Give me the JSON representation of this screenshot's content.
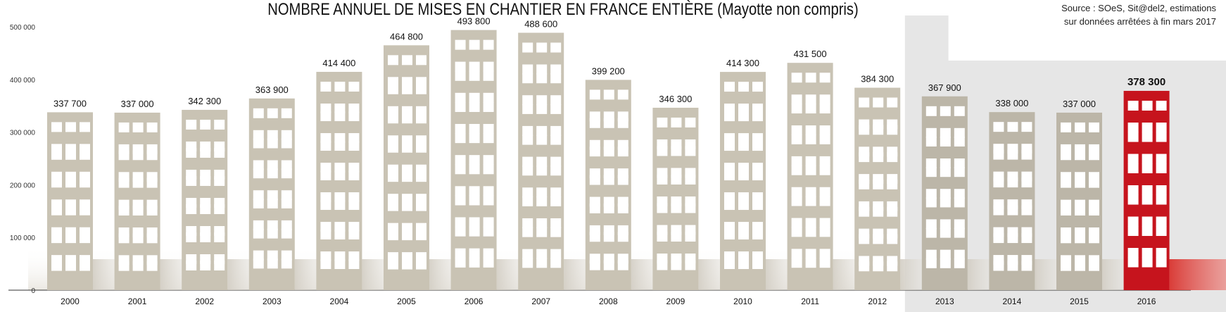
{
  "title": "NOMBRE ANNUEL DE MISES EN CHANTIER EN FRANCE ENTIÈRE (Mayotte non compris)",
  "source": [
    "Source : SOeS, Sit@del2, estimations",
    "sur données arrêtées à fin mars 2017"
  ],
  "colors": {
    "building": "#c9c3b4",
    "building_est": "#bcb6a8",
    "highlight": "#c6141d",
    "window": "#ffffff"
  },
  "chart_data": {
    "type": "bar",
    "categories": [
      "2000",
      "2001",
      "2002",
      "2003",
      "2004",
      "2005",
      "2006",
      "2007",
      "2008",
      "2009",
      "2010",
      "2011",
      "2012",
      "2013",
      "2014",
      "2015",
      "2016"
    ],
    "values": [
      337700,
      337000,
      342300,
      363900,
      414400,
      464800,
      493800,
      488600,
      399200,
      346300,
      414300,
      431500,
      384300,
      367900,
      338000,
      337000,
      378300
    ],
    "value_labels": [
      "337 700",
      "337 000",
      "342 300",
      "363 900",
      "414 400",
      "464 800",
      "493 800",
      "488 600",
      "399 200",
      "346 300",
      "414 300",
      "431 500",
      "384 300",
      "367 900",
      "338 000",
      "337 000",
      "378 300"
    ],
    "y_ticks": [
      0,
      100000,
      200000,
      300000,
      400000,
      500000
    ],
    "y_tick_labels": [
      "0",
      "100 000",
      "200 000",
      "300 000",
      "400 000",
      "500 000"
    ],
    "ylim": [
      0,
      500000
    ],
    "estimated_from": "2013",
    "highlight": "2016",
    "grid": false,
    "legend": "none"
  }
}
